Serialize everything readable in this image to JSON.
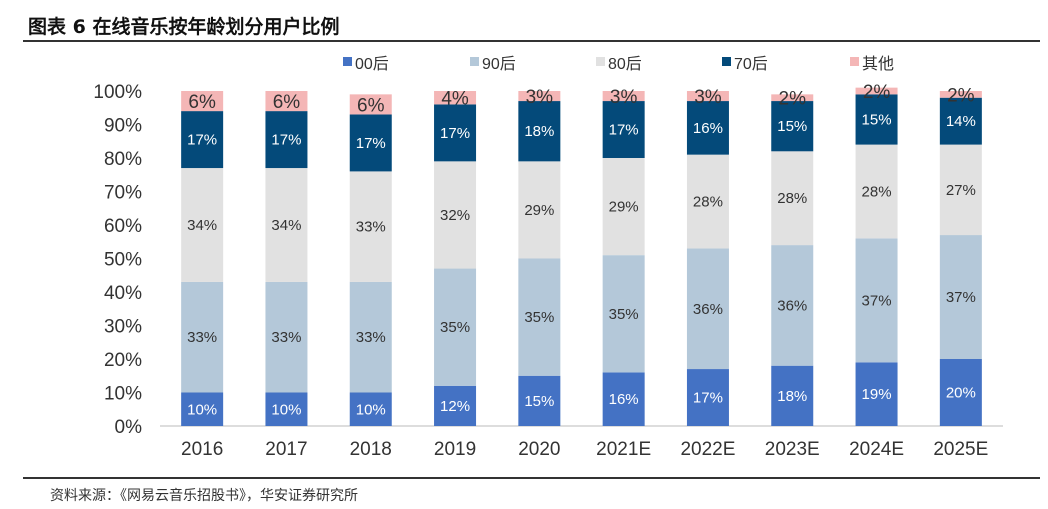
{
  "title": "图表 6 在线音乐按年龄划分用户比例",
  "source": "资料来源：《网易云音乐招股书》，华安证券研究所",
  "chart_data": {
    "type": "bar",
    "stacked": true,
    "percent": true,
    "categories": [
      "2016",
      "2017",
      "2018",
      "2019",
      "2020",
      "2021E",
      "2022E",
      "2023E",
      "2024E",
      "2025E"
    ],
    "series": [
      {
        "name": "00后",
        "color": "#4472C4",
        "label_color": "#ffffff",
        "values": [
          10,
          10,
          10,
          12,
          15,
          16,
          17,
          18,
          19,
          20
        ]
      },
      {
        "name": "90后",
        "color": "#B4C8D9",
        "label_color": "#333333",
        "values": [
          33,
          33,
          33,
          35,
          35,
          35,
          36,
          36,
          37,
          37
        ]
      },
      {
        "name": "80后",
        "color": "#E1E1E1",
        "label_color": "#333333",
        "values": [
          34,
          34,
          33,
          32,
          29,
          29,
          28,
          28,
          28,
          27
        ]
      },
      {
        "name": "70后",
        "color": "#044A7A",
        "label_color": "#ffffff",
        "values": [
          17,
          17,
          17,
          17,
          18,
          17,
          16,
          15,
          15,
          14
        ]
      },
      {
        "name": "其他",
        "color": "#F4B6B6",
        "label_color": "#333333",
        "values": [
          6,
          6,
          6,
          4,
          3,
          3,
          3,
          2,
          2,
          2
        ]
      }
    ],
    "yticks": [
      "0%",
      "10%",
      "20%",
      "30%",
      "40%",
      "50%",
      "60%",
      "70%",
      "80%",
      "90%",
      "100%"
    ],
    "ylim": [
      0,
      100
    ],
    "legend_position": "top",
    "grid": false
  }
}
